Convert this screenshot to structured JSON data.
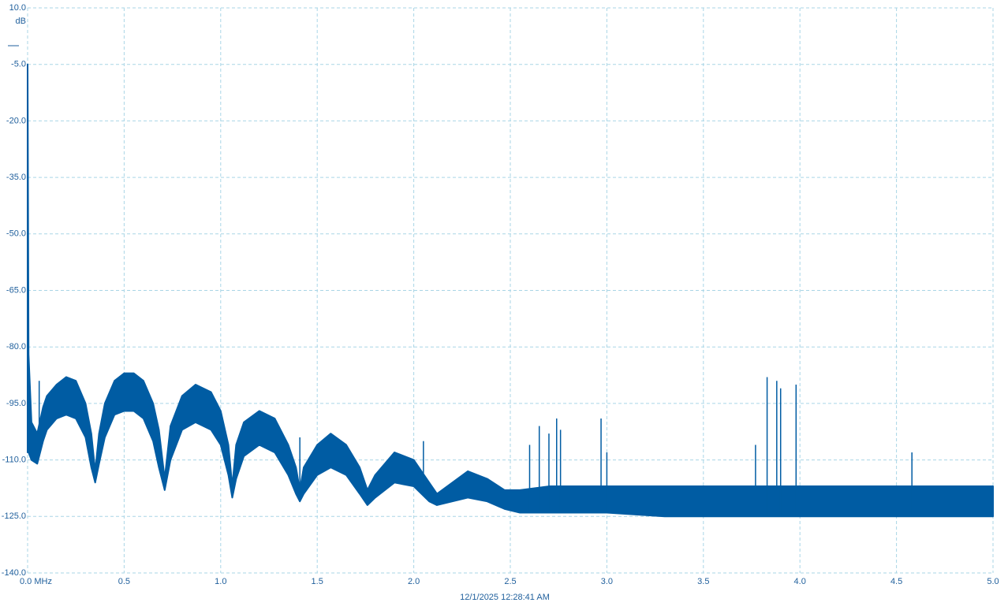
{
  "chart_data": {
    "type": "band",
    "y_unit": "dB",
    "footer": "12/1/2025 12:28:41 AM",
    "x": [
      0,
      0.005,
      0.02,
      0.05,
      0.08,
      0.1,
      0.15,
      0.2,
      0.25,
      0.3,
      0.33,
      0.35,
      0.37,
      0.4,
      0.45,
      0.5,
      0.55,
      0.6,
      0.65,
      0.68,
      0.71,
      0.74,
      0.8,
      0.87,
      0.95,
      1.0,
      1.04,
      1.06,
      1.08,
      1.12,
      1.2,
      1.28,
      1.35,
      1.39,
      1.41,
      1.43,
      1.5,
      1.57,
      1.65,
      1.72,
      1.76,
      1.8,
      1.9,
      2.0,
      2.08,
      2.12,
      2.2,
      2.28,
      2.38,
      2.47,
      2.55,
      2.7,
      3.0,
      3.3,
      3.6,
      3.9,
      4.2,
      4.5,
      4.8,
      5.0
    ],
    "series": [
      {
        "color": "#005ca3",
        "values": [
          -5,
          -82,
          -100,
          -103,
          -96,
          -93,
          -90,
          -88,
          -89,
          -95,
          -103,
          -113,
          -103,
          -95,
          -89,
          -87,
          -87,
          -89,
          -95,
          -102,
          -115,
          -101,
          -93,
          -90,
          -92,
          -97,
          -106,
          -117,
          -106,
          -100,
          -97,
          -99,
          -106,
          -112,
          -118,
          -112,
          -106,
          -103,
          -106,
          -112,
          -118,
          -114,
          -108,
          -110,
          -116,
          -119,
          -116,
          -113,
          -115,
          -118,
          -118,
          -117,
          -117,
          -117,
          -117,
          -117,
          -117,
          -117,
          -117,
          -117
        ]
      },
      {
        "color": "#005ca3",
        "values": [
          -108,
          -108,
          -110,
          -111,
          -105,
          -102,
          -99,
          -98,
          -99,
          -104,
          -112,
          -116,
          -111,
          -104,
          -98,
          -97,
          -97,
          -99,
          -105,
          -112,
          -118,
          -110,
          -102,
          -100,
          -102,
          -106,
          -114,
          -120,
          -115,
          -109,
          -106,
          -108,
          -114,
          -119,
          -121,
          -119,
          -114,
          -112,
          -114,
          -119,
          -122,
          -120,
          -116,
          -117,
          -121,
          -122,
          -121,
          -120,
          -121,
          -123,
          -124,
          -124,
          -124,
          -125,
          -125,
          -125,
          -125,
          -125,
          -125,
          -125
        ]
      }
    ],
    "spikes": {
      "color": "#005ca3",
      "x": [
        0.06,
        1.41,
        2.05,
        2.6,
        2.65,
        2.7,
        2.74,
        2.76,
        2.97,
        3.0,
        3.77,
        3.83,
        3.88,
        3.9,
        3.98,
        4.58
      ],
      "values": [
        -89,
        -104,
        -105,
        -106,
        -101,
        -103,
        -99,
        -102,
        -99,
        -108,
        -106,
        -88,
        -89,
        -91,
        -90,
        -108
      ]
    },
    "xlim": [
      0,
      5
    ],
    "ylim": [
      -140,
      10
    ],
    "xticks": [
      {
        "value": 0,
        "label": "0.0 MHz"
      },
      0.5,
      {
        "value": 1,
        "label": "1.0"
      },
      1.5,
      {
        "value": 2,
        "label": "2.0"
      },
      2.5,
      {
        "value": 3,
        "label": "3.0"
      },
      3.5,
      {
        "value": 4,
        "label": "4.0"
      },
      4.5,
      {
        "value": 5,
        "label": "5.0"
      }
    ],
    "yticks": [
      {
        "value": 10,
        "label": "10.0"
      },
      {
        "value": -5,
        "label": "-5.0"
      },
      {
        "value": -20,
        "label": "-20.0"
      },
      {
        "value": -35,
        "label": "-35.0"
      },
      {
        "value": -50,
        "label": "-50.0"
      },
      {
        "value": -65,
        "label": "-65.0"
      },
      {
        "value": -80,
        "label": "-80.0"
      },
      {
        "value": -95,
        "label": "-95.0"
      },
      {
        "value": -110,
        "label": "-110.0"
      },
      {
        "value": -125,
        "label": "-125.0"
      },
      {
        "value": -140,
        "label": "-140.0"
      }
    ],
    "grid": true
  }
}
